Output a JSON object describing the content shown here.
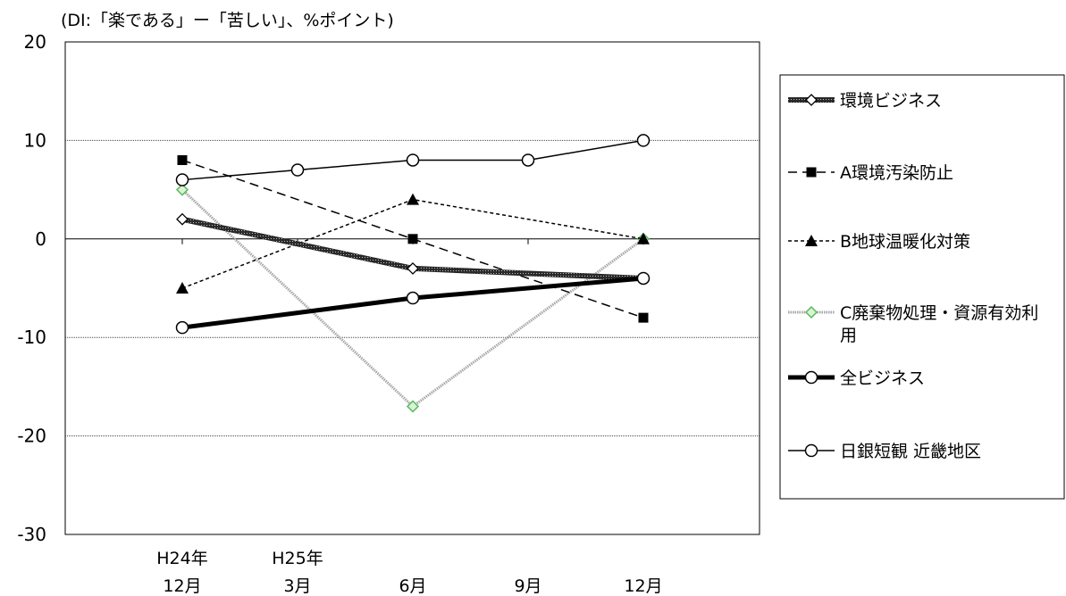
{
  "chart_data": {
    "type": "line",
    "title": "",
    "ylabel": "(DI:「楽である」ー「苦しい」、%ポイント)",
    "xlabel": "",
    "ylim": [
      -30,
      20
    ],
    "yticks": [
      20,
      10,
      0,
      -10,
      -20,
      -30
    ],
    "grid": true,
    "legend_position": "right",
    "categories": [
      {
        "top": "H24年",
        "bottom": "12月"
      },
      {
        "top": "H25年",
        "bottom": "3月"
      },
      {
        "top": "",
        "bottom": "6月"
      },
      {
        "top": "",
        "bottom": "9月"
      },
      {
        "top": "",
        "bottom": "12月"
      }
    ],
    "series": [
      {
        "name": "環境ビジネス",
        "values": [
          2,
          null,
          -3,
          null,
          -4
        ],
        "style": "hatched",
        "marker": "diamond-open",
        "color": "#333333"
      },
      {
        "name": "A環境汚染防止",
        "values": [
          8,
          null,
          0,
          null,
          -8
        ],
        "style": "dashed",
        "marker": "square-filled",
        "color": "#000000"
      },
      {
        "name": "B地球温暖化対策",
        "values": [
          -5,
          null,
          4,
          null,
          0
        ],
        "style": "dotted",
        "marker": "triangle-filled",
        "color": "#000000"
      },
      {
        "name": "C廃棄物処理・資源有効利用",
        "values": [
          5,
          null,
          -17,
          null,
          0
        ],
        "style": "gray-dotted",
        "marker": "diamond-green",
        "color": "#a6a6a6",
        "marker_color": "#5cb85c"
      },
      {
        "name": "全ビジネス",
        "values": [
          -9,
          null,
          -6,
          null,
          -4
        ],
        "style": "thick",
        "marker": "circle-open",
        "color": "#000000"
      },
      {
        "name": "日銀短観 近畿地区",
        "values": [
          6,
          7,
          8,
          8,
          10
        ],
        "style": "solid",
        "marker": "circle-open",
        "color": "#000000"
      }
    ]
  }
}
